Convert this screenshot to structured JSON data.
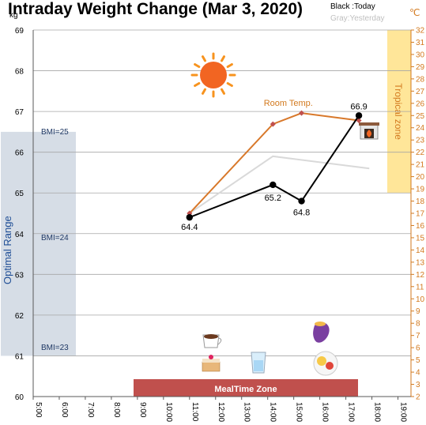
{
  "chart_data": {
    "type": "line",
    "title": "Intraday Weight Change (Mar 3, 2020)",
    "legend": {
      "today": "Black :Today",
      "yesterday": "Gray:Yesterday"
    },
    "ylabel": "kg",
    "y2label": "℃",
    "ylim": [
      60,
      69
    ],
    "y2lim": [
      2,
      32
    ],
    "y_ticks": [
      60,
      61,
      62,
      63,
      64,
      65,
      66,
      67,
      68,
      69
    ],
    "y2_ticks": [
      2,
      3,
      4,
      5,
      6,
      7,
      8,
      9,
      10,
      11,
      12,
      13,
      14,
      15,
      16,
      17,
      18,
      19,
      20,
      21,
      22,
      23,
      24,
      25,
      26,
      27,
      28,
      29,
      30,
      31,
      32
    ],
    "x_hours": [
      5,
      6,
      7,
      8,
      9,
      10,
      11,
      12,
      13,
      14,
      15,
      16,
      17,
      18,
      19
    ],
    "x_tick_labels": [
      "5:00",
      "6:00",
      "7:00",
      "8:00",
      "9:00",
      "10:00",
      "11:00",
      "12:00",
      "13:00",
      "14:00",
      "15:00",
      "16:00",
      "17:00",
      "18:00",
      "19:00"
    ],
    "series": [
      {
        "name": "Today",
        "color": "#000000",
        "x": [
          11.0,
          14.2,
          15.3,
          17.5
        ],
        "values": [
          64.4,
          65.2,
          64.8,
          66.9
        ],
        "labels": [
          "64.4",
          "65.2",
          "64.8",
          "66.9"
        ]
      },
      {
        "name": "Yesterday",
        "color": "#d9d9d9",
        "x": [
          11.0,
          14.2,
          17.9
        ],
        "values": [
          64.5,
          65.9,
          65.6
        ]
      },
      {
        "name": "Room Temp.",
        "color": "#d8782a",
        "axis": "right",
        "x": [
          11.0,
          14.2,
          15.3,
          17.5
        ],
        "values": [
          17.0,
          24.3,
          25.2,
          24.6
        ]
      }
    ],
    "annotations": {
      "room_temp": "Room Temp.",
      "optimal_range": "Optimal Range",
      "tropical_zone": "Tropical zone",
      "meal_zone": "MealTime Zone",
      "bmi": [
        {
          "label": "BMI=25",
          "kg": 66.5
        },
        {
          "label": "BMI=24",
          "kg": 63.9
        },
        {
          "label": "BMI=23",
          "kg": 61.2
        }
      ]
    },
    "grid": true,
    "colors": {
      "optimal_band": "#d6dde6",
      "tropical_band": "#ffe699",
      "meal_band": "#c0504d",
      "accent": "#d37a1f"
    }
  }
}
